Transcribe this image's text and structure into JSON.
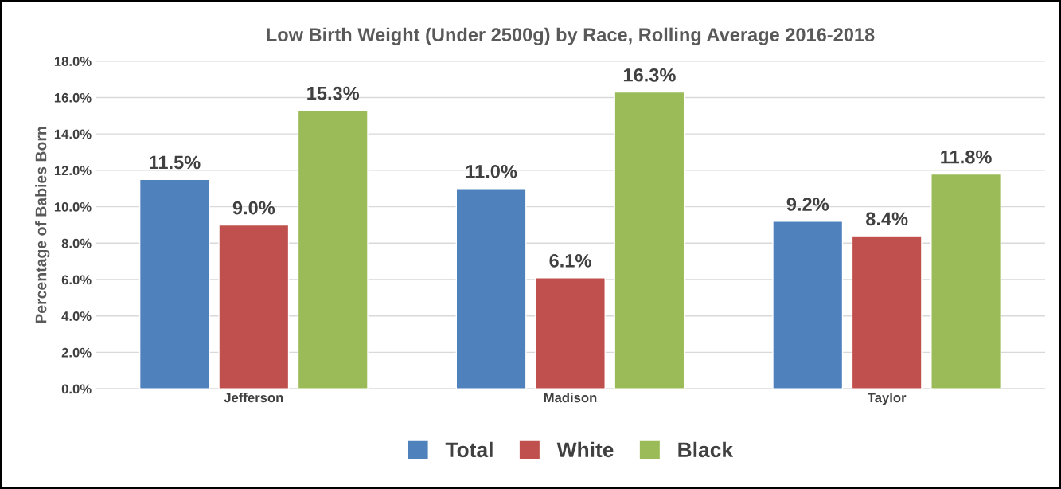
{
  "chart_data": {
    "type": "bar",
    "title": "Low Birth Weight (Under 2500g) by Race, Rolling Average 2016-2018",
    "ylabel": "Percentage of Babies Born",
    "categories": [
      "Jefferson",
      "Madison",
      "Taylor"
    ],
    "series": [
      {
        "name": "Total",
        "color": "#4f81bd",
        "values": [
          11.5,
          11.0,
          9.2
        ],
        "value_labels": [
          "11.5%",
          "11.0%",
          "9.2%"
        ]
      },
      {
        "name": "White",
        "color": "#c0504d",
        "values": [
          9.0,
          6.1,
          8.4
        ],
        "value_labels": [
          "9.0%",
          "6.1%",
          "8.4%"
        ]
      },
      {
        "name": "Black",
        "color": "#9bbb59",
        "values": [
          15.3,
          16.3,
          11.8
        ],
        "value_labels": [
          "15.3%",
          "16.3%",
          "11.8%"
        ]
      }
    ],
    "ylim": [
      0,
      18
    ],
    "yticks": [
      {
        "value": 0,
        "label": "0.0%"
      },
      {
        "value": 2,
        "label": "2.0%"
      },
      {
        "value": 4,
        "label": "4.0%"
      },
      {
        "value": 6,
        "label": "6.0%"
      },
      {
        "value": 8,
        "label": "8.0%"
      },
      {
        "value": 10,
        "label": "10.0%"
      },
      {
        "value": 12,
        "label": "12.0%"
      },
      {
        "value": 14,
        "label": "14.0%"
      },
      {
        "value": 16,
        "label": "16.0%"
      },
      {
        "value": 18,
        "label": "18.0%"
      }
    ],
    "grid": "y",
    "legend": "bottom"
  }
}
